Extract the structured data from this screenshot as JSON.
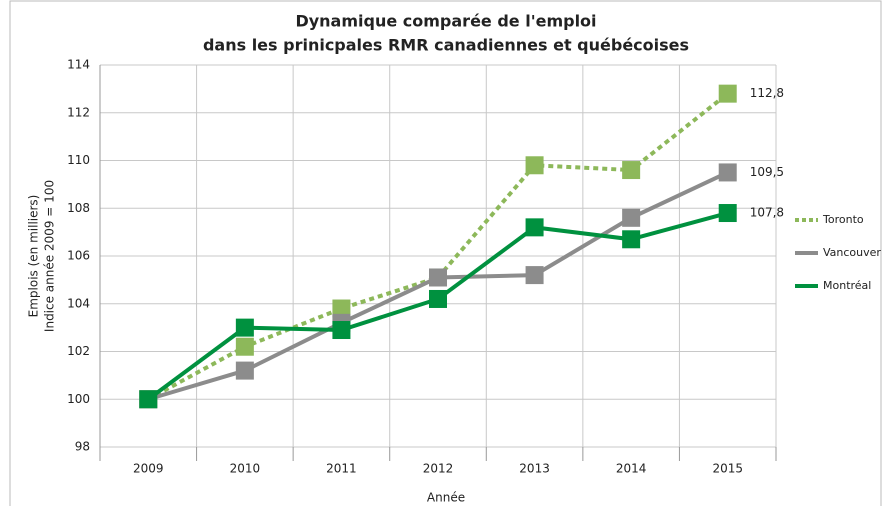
{
  "chart_data": {
    "type": "line",
    "title": [
      "Dynamique comparée de l'emploi",
      "dans les prinicpales RMR canadiennes et québécoises"
    ],
    "y_label": [
      "Emplois (en milliers)",
      "Indice année 2009 = 100"
    ],
    "x_label": "Année",
    "categories": [
      "2009",
      "2010",
      "2011",
      "2012",
      "2013",
      "2014",
      "2015"
    ],
    "series": [
      {
        "name": "Toronto",
        "color": "#8db85a",
        "dashed": true,
        "values": [
          100,
          102.2,
          103.8,
          105.1,
          109.8,
          109.6,
          112.8
        ],
        "value_labels": [
          null,
          null,
          null,
          null,
          null,
          null,
          "112,8"
        ]
      },
      {
        "name": "Vancouver",
        "color": "#8c8c8c",
        "dashed": false,
        "values": [
          100,
          101.2,
          103.2,
          105.1,
          105.2,
          107.6,
          109.5
        ],
        "value_labels": [
          null,
          null,
          null,
          null,
          null,
          null,
          "109,5"
        ]
      },
      {
        "name": "Montréal",
        "color": "#00913f",
        "dashed": false,
        "values": [
          100,
          103.0,
          102.9,
          104.2,
          107.2,
          106.7,
          107.8
        ],
        "value_labels": [
          null,
          null,
          null,
          null,
          null,
          null,
          "107,8"
        ]
      }
    ],
    "ylim": [
      98,
      114
    ],
    "yticks": [
      98,
      100,
      102,
      104,
      106,
      108,
      110,
      112,
      114
    ],
    "grid": true,
    "legend": "right"
  }
}
